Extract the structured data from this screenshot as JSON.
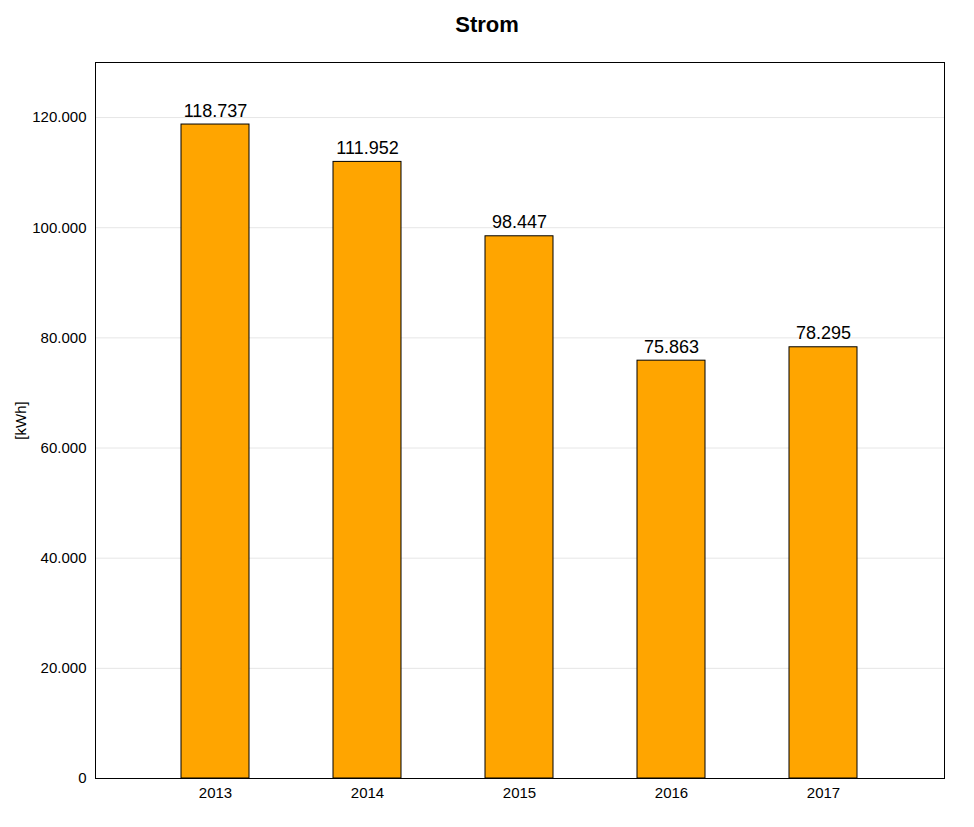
{
  "chart_data": {
    "type": "bar",
    "title": "Strom",
    "categories": [
      "2013",
      "2014",
      "2015",
      "2016",
      "2017"
    ],
    "values": [
      118737,
      111952,
      98447,
      75863,
      78295
    ],
    "value_labels": [
      "118.737",
      "111.952",
      "98.447",
      "75.863",
      "78.295"
    ],
    "data_labels": true,
    "color": "#FFA500",
    "ylabel": "[kWh]",
    "ylim": [
      0,
      130000
    ],
    "yticks": [
      0,
      {
        "value": 20000,
        "label": "20.000"
      },
      {
        "value": 40000,
        "label": "40.000"
      },
      {
        "value": 60000,
        "label": "60.000"
      },
      {
        "value": 80000,
        "label": "80.000"
      },
      {
        "value": 100000,
        "label": "100.000"
      },
      {
        "value": 120000,
        "label": "120.000"
      }
    ],
    "grid": true
  }
}
